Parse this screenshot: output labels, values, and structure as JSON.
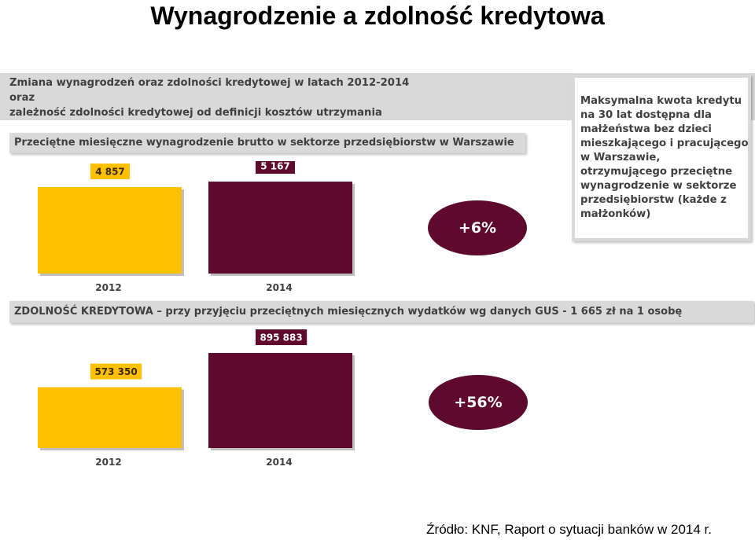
{
  "title": "Wynagrodzenie a zdolność kredytowa",
  "header_lines": [
    "Zmiana wynagrodzeń oraz zdolności kredytowej w latach 2012-2014",
    "oraz",
    "zależność zdolności kredytowej od definicji kosztów utrzymania"
  ],
  "side_note": "Maksymalna kwota kredytu na 30 lat dostępna dla małżeństwa bez dzieci mieszkającego i pracującego w Warszawie, otrzymującego przeciętne wynagrodzenie w sektorze przedsiębiorstw (każde z małżonków)",
  "source": "Źródło: KNF, Raport o sytuacji banków w 2014 r.",
  "colors": {
    "year_2012": "#ffc000",
    "year_2014": "#5f0a2c",
    "band": "#d9d9d9",
    "text": "#404040"
  },
  "chart_data": [
    {
      "type": "bar",
      "title": "Przeciętne miesięczne wynagrodzenie brutto w sektorze przedsiębiorstw w Warszawie",
      "categories": [
        "2012",
        "2014"
      ],
      "values": [
        4857,
        5167
      ],
      "value_labels": [
        "4 857",
        "5 167"
      ],
      "change_label": "+6%",
      "ylim": [
        0,
        5700
      ]
    },
    {
      "type": "bar",
      "title": "ZDOLNOŚĆ KREDYTOWA – przy przyjęciu przeciętnych miesięcznych wydatków wg danych GUS - 1 665 zł na 1 osobę",
      "categories": [
        "2012",
        "2014"
      ],
      "values": [
        573350,
        895883
      ],
      "value_labels": [
        "573 350",
        "895 883"
      ],
      "change_label": "+56%",
      "ylim": [
        0,
        1000000
      ]
    }
  ]
}
